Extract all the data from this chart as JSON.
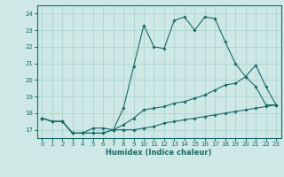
{
  "xlabel": "Humidex (Indice chaleur)",
  "bg_color": "#cde8e5",
  "grid_color": "#aacfcc",
  "line_color": "#1a6b6b",
  "xlim": [
    -0.5,
    23.5
  ],
  "ylim": [
    16.5,
    24.5
  ],
  "xticks": [
    0,
    1,
    2,
    3,
    4,
    5,
    6,
    7,
    8,
    9,
    10,
    11,
    12,
    13,
    14,
    15,
    16,
    17,
    18,
    19,
    20,
    21,
    22,
    23
  ],
  "yticks": [
    17,
    18,
    19,
    20,
    21,
    22,
    23,
    24
  ],
  "line1_x": [
    0,
    1,
    2,
    3,
    4,
    5,
    6,
    7,
    8,
    9,
    10,
    11,
    12,
    13,
    14,
    15,
    16,
    17,
    18,
    19,
    20,
    21,
    22,
    23
  ],
  "line1_y": [
    17.7,
    17.5,
    17.5,
    16.8,
    16.8,
    16.8,
    16.8,
    17.0,
    17.0,
    17.0,
    17.1,
    17.2,
    17.4,
    17.5,
    17.6,
    17.7,
    17.8,
    17.9,
    18.0,
    18.1,
    18.2,
    18.3,
    18.4,
    18.5
  ],
  "line2_x": [
    0,
    1,
    2,
    3,
    4,
    5,
    6,
    7,
    8,
    9,
    10,
    11,
    12,
    13,
    14,
    15,
    16,
    17,
    18,
    19,
    20,
    21,
    22,
    23
  ],
  "line2_y": [
    17.7,
    17.5,
    17.5,
    16.8,
    16.8,
    16.8,
    16.8,
    17.0,
    17.3,
    17.7,
    18.2,
    18.3,
    18.4,
    18.6,
    18.7,
    18.9,
    19.1,
    19.4,
    19.7,
    19.8,
    20.2,
    20.9,
    19.6,
    18.5
  ],
  "line3_x": [
    0,
    1,
    2,
    3,
    4,
    5,
    6,
    7,
    8,
    9,
    10,
    11,
    12,
    13,
    14,
    15,
    16,
    17,
    18,
    19,
    20,
    21,
    22,
    23
  ],
  "line3_y": [
    17.7,
    17.5,
    17.5,
    16.8,
    16.8,
    17.1,
    17.1,
    17.0,
    18.3,
    20.8,
    23.3,
    22.0,
    21.9,
    23.6,
    23.8,
    23.0,
    23.8,
    23.7,
    22.3,
    21.0,
    20.2,
    19.6,
    18.5,
    18.5
  ]
}
